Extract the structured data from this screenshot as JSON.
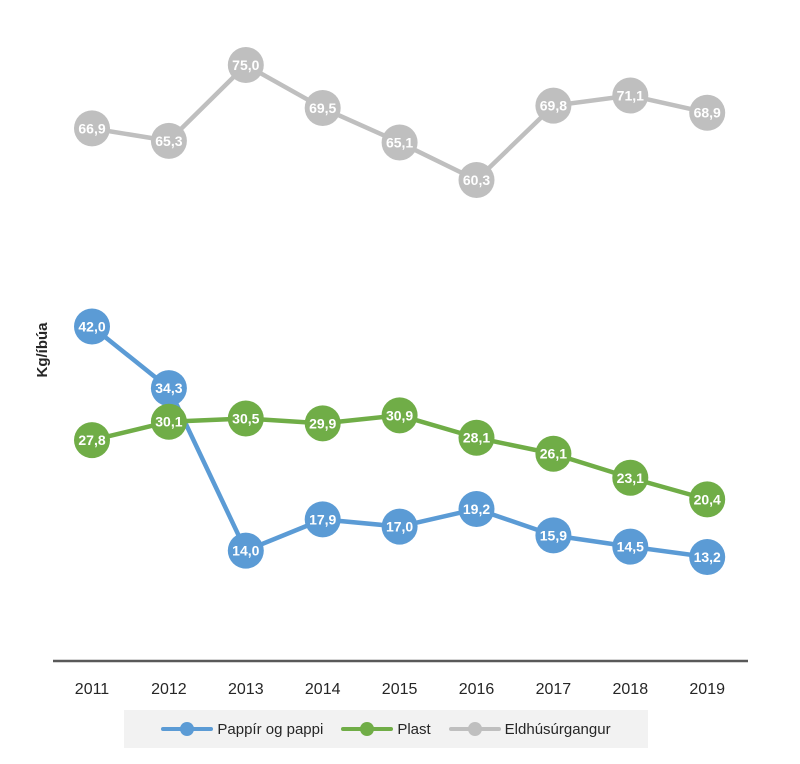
{
  "chart_data": {
    "type": "line",
    "ylabel": "Kg/íbúa",
    "x": [
      "2011",
      "2012",
      "2013",
      "2014",
      "2015",
      "2016",
      "2017",
      "2018",
      "2019"
    ],
    "ylim": [
      0,
      80
    ],
    "grid": false,
    "legend_position": "bottom",
    "series": [
      {
        "name": "Pappír og pappi",
        "color": "#5b9bd5",
        "values": [
          42.0,
          34.3,
          14.0,
          17.9,
          17.0,
          19.2,
          15.9,
          14.5,
          13.2
        ],
        "labels": [
          "42,0",
          "34,3",
          "14,0",
          "17,9",
          "17,0",
          "19,2",
          "15,9",
          "14,5",
          "13,2"
        ]
      },
      {
        "name": "Plast",
        "color": "#70ad47",
        "values": [
          27.8,
          30.1,
          30.5,
          29.9,
          30.9,
          28.1,
          26.1,
          23.1,
          20.4
        ],
        "labels": [
          "27,8",
          "30,1",
          "30,5",
          "29,9",
          "30,9",
          "28,1",
          "26,1",
          "23,1",
          "20,4"
        ]
      },
      {
        "name": "Eldhúsúrgangur",
        "color": "#bfbfbf",
        "values": [
          66.9,
          65.3,
          75.0,
          69.5,
          65.1,
          60.3,
          69.8,
          71.1,
          68.9
        ],
        "labels": [
          "66,9",
          "65,3",
          "75,0",
          "69,5",
          "65,1",
          "60,3",
          "69,8",
          "71,1",
          "68,9"
        ]
      }
    ]
  }
}
